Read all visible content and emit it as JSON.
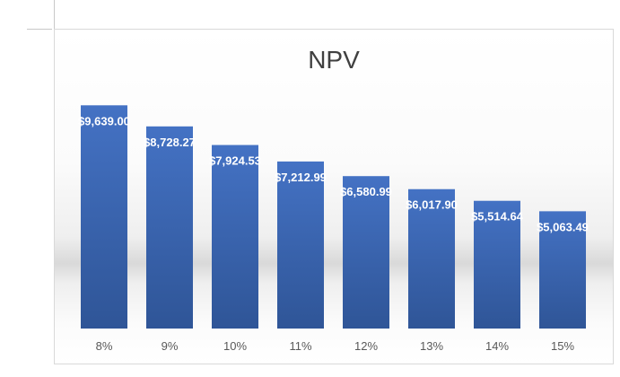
{
  "chart_data": {
    "type": "bar",
    "title": "NPV",
    "xlabel": "",
    "ylabel": "",
    "categories": [
      "8%",
      "9%",
      "10%",
      "11%",
      "12%",
      "13%",
      "14%",
      "15%"
    ],
    "values": [
      9639.0,
      8728.27,
      7924.53,
      7212.99,
      6580.99,
      6017.9,
      5514.64,
      5063.49
    ],
    "data_labels": [
      "$9,639.00",
      "$8,728.27",
      "$7,924.53",
      "$7,212.99",
      "$6,580.99",
      "$6,017.90",
      "$5,514.64",
      "$5,063.49"
    ],
    "ylim": [
      0,
      10000
    ],
    "grid": false,
    "legend": "none",
    "bar_color": "#4472C4",
    "bar_color_dark": "#2F5597"
  }
}
